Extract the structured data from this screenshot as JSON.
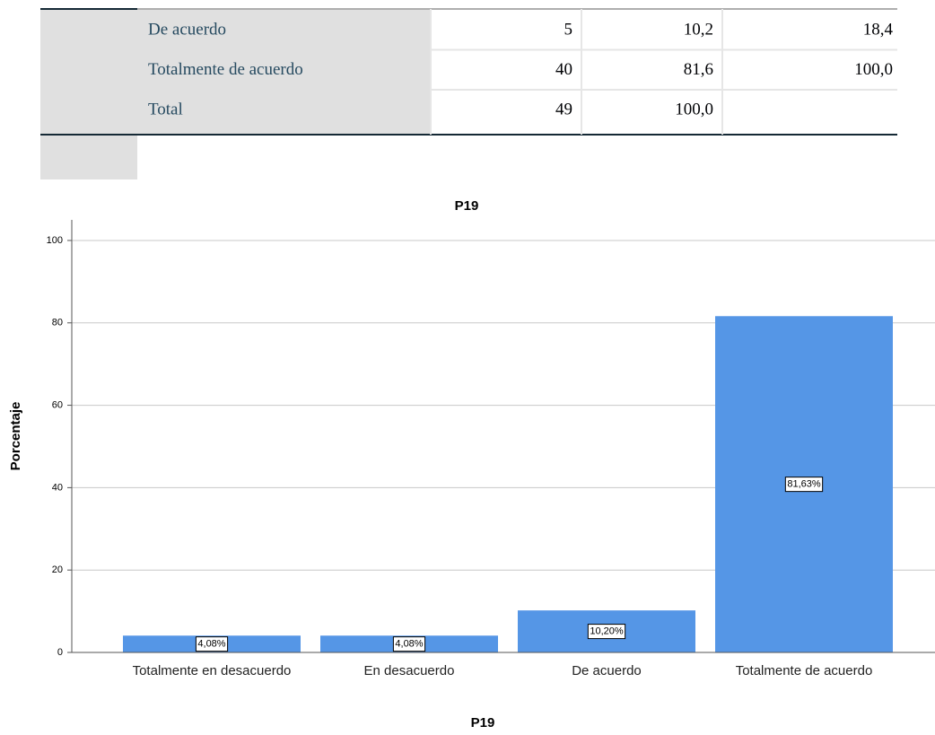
{
  "table": {
    "rows": [
      [
        "De acuerdo",
        "5",
        "10,2",
        "18,4"
      ],
      [
        "Totalmente de acuerdo",
        "40",
        "81,6",
        "100,0"
      ],
      [
        "Total",
        "49",
        "100,0"
      ]
    ]
  },
  "chart_data": {
    "type": "bar",
    "title": "P19",
    "x_label": "P19",
    "y_label": "Porcentaje",
    "categories": [
      "Totalmente en desacuerdo",
      "En desacuerdo",
      "De acuerdo",
      "Totalmente de acuerdo"
    ],
    "values": [
      4.08,
      4.08,
      10.2,
      81.63
    ],
    "value_labels": [
      "4,08%",
      "4,08%",
      "10,20%",
      "81,63%"
    ],
    "color": "#5596e6",
    "ylim": [
      0,
      105
    ],
    "yticks": [
      0,
      20,
      40,
      60,
      80,
      100
    ],
    "grid": true
  }
}
